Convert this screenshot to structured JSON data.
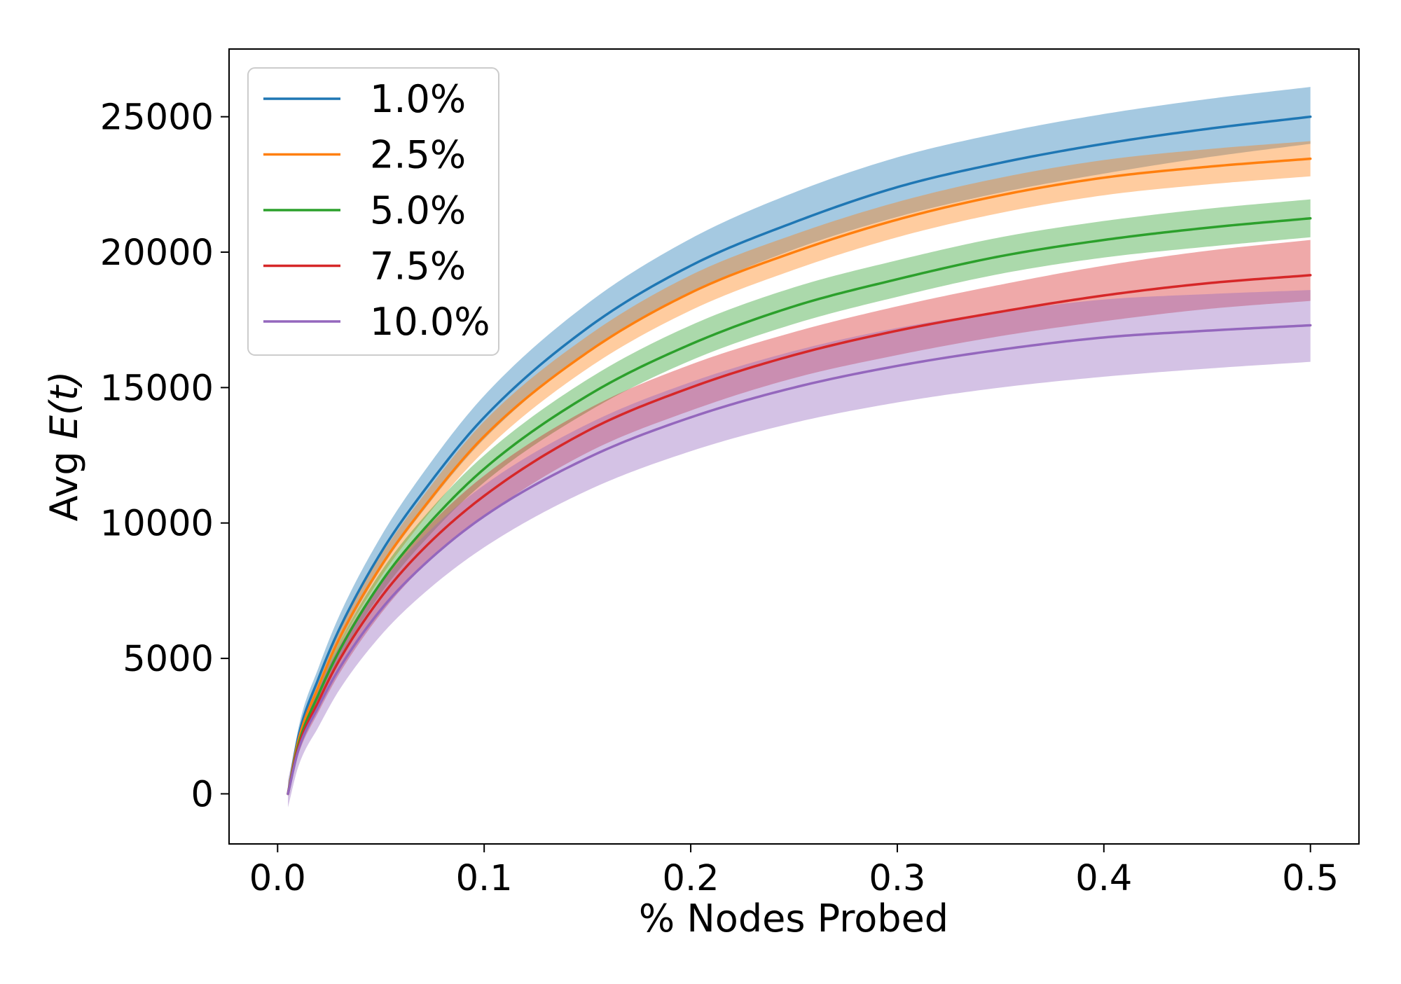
{
  "chart_data": {
    "type": "line",
    "title": "",
    "xlabel": "% Nodes Probed",
    "ylabel_prefix": "Avg ",
    "ylabel_math": "E(t)",
    "xlim": [
      -0.0235,
      0.5235
    ],
    "ylim": [
      -1850,
      27500
    ],
    "xticks": [
      0.0,
      0.1,
      0.2,
      0.3,
      0.4,
      0.5
    ],
    "xtick_labels": [
      "0.0",
      "0.1",
      "0.2",
      "0.3",
      "0.4",
      "0.5"
    ],
    "yticks": [
      0,
      5000,
      10000,
      15000,
      20000,
      25000
    ],
    "ytick_labels": [
      "0",
      "5000",
      "10000",
      "15000",
      "20000",
      "25000"
    ],
    "grid": false,
    "legend_position": "top-left",
    "x": [
      0.005,
      0.01,
      0.02,
      0.03,
      0.05,
      0.07,
      0.1,
      0.15,
      0.2,
      0.25,
      0.3,
      0.35,
      0.4,
      0.45,
      0.5
    ],
    "series": [
      {
        "name": "1.0%",
        "color": "#1f77b4",
        "values": [
          0,
          2100,
          4300,
          6100,
          8900,
          11100,
          13900,
          17200,
          19500,
          21100,
          22400,
          23300,
          24000,
          24550,
          25000
        ],
        "lower": [
          0,
          1800,
          3900,
          5600,
          8300,
          10400,
          13100,
          16300,
          18500,
          20100,
          21300,
          22200,
          22900,
          23500,
          24000
        ],
        "upper": [
          0,
          2400,
          4700,
          6600,
          9500,
          11800,
          14700,
          18100,
          20500,
          22200,
          23500,
          24400,
          25100,
          25650,
          26100
        ]
      },
      {
        "name": "2.5%",
        "color": "#ff7f0e",
        "values": [
          0,
          1950,
          4000,
          5750,
          8400,
          10500,
          13200,
          16300,
          18500,
          20000,
          21200,
          22100,
          22750,
          23150,
          23450
        ],
        "lower": [
          0,
          1800,
          3750,
          5450,
          8000,
          10050,
          12650,
          15700,
          17850,
          19350,
          20550,
          21450,
          22100,
          22500,
          22800
        ],
        "upper": [
          0,
          2100,
          4250,
          6050,
          8800,
          10950,
          13750,
          16900,
          19150,
          20650,
          21850,
          22750,
          23400,
          23800,
          24100
        ]
      },
      {
        "name": "5.0%",
        "color": "#2ca02c",
        "values": [
          0,
          1800,
          3700,
          5300,
          7800,
          9700,
          12000,
          14700,
          16600,
          18000,
          19000,
          19850,
          20450,
          20900,
          21250
        ],
        "lower": [
          0,
          1650,
          3450,
          5000,
          7400,
          9250,
          11500,
          14100,
          16000,
          17350,
          18350,
          19200,
          19800,
          20200,
          20550
        ],
        "upper": [
          0,
          1950,
          3950,
          5600,
          8200,
          10150,
          12500,
          15300,
          17300,
          18700,
          19700,
          20550,
          21150,
          21600,
          21950
        ]
      },
      {
        "name": "7.5%",
        "color": "#d62728",
        "values": [
          0,
          1700,
          3450,
          4950,
          7250,
          9000,
          11000,
          13400,
          15000,
          16200,
          17100,
          17800,
          18400,
          18850,
          19150
        ],
        "lower": [
          0,
          1450,
          3050,
          4450,
          6650,
          8350,
          10250,
          12600,
          14150,
          15350,
          16200,
          16900,
          17450,
          17900,
          18200
        ],
        "upper": [
          0,
          1950,
          3850,
          5450,
          7850,
          9650,
          11750,
          14200,
          15850,
          17050,
          18000,
          18800,
          19500,
          20050,
          20450
        ]
      },
      {
        "name": "10.0%",
        "color": "#9467bd",
        "values": [
          0,
          1600,
          3250,
          4650,
          6800,
          8400,
          10250,
          12400,
          13900,
          15000,
          15800,
          16400,
          16850,
          17100,
          17300
        ],
        "lower": [
          -500,
          1000,
          2500,
          3850,
          5850,
          7350,
          9100,
          11200,
          12650,
          13700,
          14450,
          15000,
          15400,
          15700,
          15950
        ],
        "upper": [
          500,
          2200,
          4000,
          5450,
          7750,
          9450,
          11400,
          13650,
          15200,
          16350,
          17200,
          17800,
          18250,
          18450,
          18600
        ]
      }
    ]
  }
}
